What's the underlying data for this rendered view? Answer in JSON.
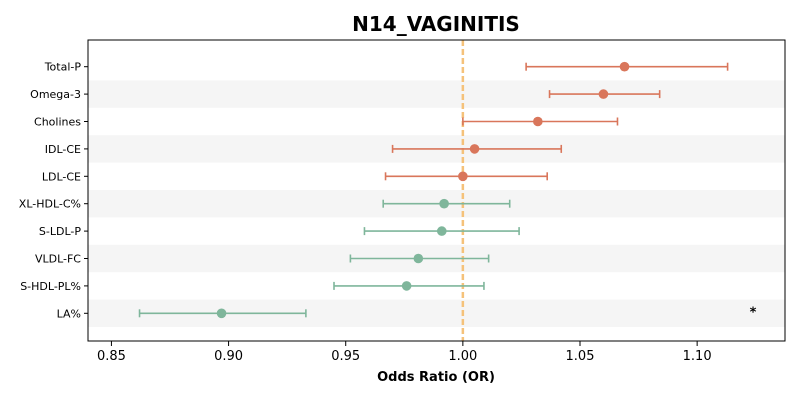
{
  "chart_data": {
    "type": "scatter",
    "subtype": "forest-plot",
    "title": "N14_VAGINITIS",
    "xlabel": "Odds Ratio (OR)",
    "ylabel": "",
    "xlim": [
      0.84,
      1.1375
    ],
    "xticks": [
      0.85,
      0.9,
      0.95,
      1.0,
      1.05,
      1.1
    ],
    "xtick_labels": [
      "0.85",
      "0.90",
      "0.95",
      "1.00",
      "1.05",
      "1.10"
    ],
    "reference_line": 1.0,
    "reference_color": "#f5c27a",
    "grid": false,
    "band_color": "#f5f5f5",
    "colors": {
      "risk": "#d9765b",
      "protective": "#7fb69b"
    },
    "rows": [
      {
        "label": "Total-P",
        "or": 1.069,
        "lo": 1.027,
        "hi": 1.113,
        "group": "risk",
        "annotation": ""
      },
      {
        "label": "Omega-3",
        "or": 1.06,
        "lo": 1.037,
        "hi": 1.084,
        "group": "risk",
        "annotation": ""
      },
      {
        "label": "Cholines",
        "or": 1.032,
        "lo": 1.0,
        "hi": 1.066,
        "group": "risk",
        "annotation": ""
      },
      {
        "label": "IDL-CE",
        "or": 1.005,
        "lo": 0.97,
        "hi": 1.042,
        "group": "risk",
        "annotation": ""
      },
      {
        "label": "LDL-CE",
        "or": 1.0,
        "lo": 0.967,
        "hi": 1.036,
        "group": "risk",
        "annotation": ""
      },
      {
        "label": "XL-HDL-C%",
        "or": 0.992,
        "lo": 0.966,
        "hi": 1.02,
        "group": "protective",
        "annotation": ""
      },
      {
        "label": "S-LDL-P",
        "or": 0.991,
        "lo": 0.958,
        "hi": 1.024,
        "group": "protective",
        "annotation": ""
      },
      {
        "label": "VLDL-FC",
        "or": 0.981,
        "lo": 0.952,
        "hi": 1.011,
        "group": "protective",
        "annotation": ""
      },
      {
        "label": "S-HDL-PL%",
        "or": 0.976,
        "lo": 0.945,
        "hi": 1.009,
        "group": "protective",
        "annotation": ""
      },
      {
        "label": "LA%",
        "or": 0.897,
        "lo": 0.862,
        "hi": 0.933,
        "group": "protective",
        "annotation": "*"
      }
    ]
  }
}
